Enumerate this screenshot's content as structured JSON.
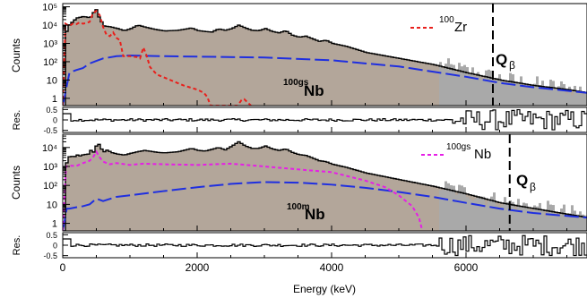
{
  "figure": {
    "x_axis_label": "Energy (keV)",
    "x_ticks": [
      "0",
      "2000",
      "4000",
      "6000"
    ],
    "x_range": [
      0,
      7800
    ]
  },
  "chart_data": [
    {
      "type": "area",
      "panel": "top",
      "ylabel": "Counts",
      "yscale": "log",
      "ylim": [
        0.4,
        150000
      ],
      "y_ticks": [
        "1",
        "10",
        "10²",
        "10³",
        "10⁴",
        "10⁵"
      ],
      "annotations": {
        "q_label": "Q",
        "q_sub": "β",
        "q_line_x": 6400,
        "nucleus_sup": "100gs",
        "nucleus_name": "Nb"
      },
      "legend": {
        "sup": "100",
        "name": "Zr",
        "color": "#e8201c",
        "placement": "top-right"
      },
      "series": [
        {
          "name": "",
          "role": "total-fit",
          "color": "#000000",
          "fill": "#b3a69a",
          "x": [
            0,
            20,
            50,
            100,
            150,
            200,
            300,
            350,
            400,
            450,
            480,
            500,
            520,
            560,
            600,
            700,
            800,
            900,
            1000,
            1100,
            1200,
            1300,
            1400,
            1500,
            1700,
            1900,
            2000,
            2100,
            2200,
            2300,
            2400,
            2500,
            2600,
            2700,
            2800,
            2900,
            3000,
            3100,
            3200,
            3300,
            3400,
            3500,
            3600,
            3700,
            3800,
            3900,
            4000,
            4200,
            4500,
            5000,
            5500,
            6000,
            6500,
            7000,
            7500,
            7800
          ],
          "y": [
            0.4,
            1500,
            8000,
            12000,
            18000,
            25000,
            30000,
            26000,
            28000,
            55000,
            70000,
            45000,
            28000,
            15000,
            9000,
            8000,
            6500,
            5000,
            6500,
            10000,
            8000,
            6500,
            5500,
            4800,
            5200,
            7000,
            5000,
            4500,
            4200,
            6200,
            5200,
            6500,
            10000,
            7000,
            5200,
            5000,
            6500,
            4500,
            3800,
            5000,
            2800,
            2200,
            2500,
            1800,
            1300,
            1500,
            1000,
            700,
            320,
            150,
            70,
            25,
            10,
            5,
            3,
            2
          ]
        },
        {
          "name": "",
          "role": "100gsNb-component",
          "color": "#1f2fe0",
          "x": [
            0,
            100,
            200,
            300,
            400,
            500,
            600,
            800,
            1000,
            1500,
            2000,
            3000,
            4000,
            5000,
            6000,
            6500,
            7000,
            7800
          ],
          "y": [
            0.4,
            25,
            35,
            45,
            80,
            110,
            150,
            200,
            220,
            200,
            190,
            170,
            120,
            55,
            15,
            7,
            4,
            2
          ]
        },
        {
          "name": "100Zr",
          "role": "100Zr-component",
          "color": "#e8201c",
          "dashed": true,
          "x": [
            0,
            40,
            100,
            150,
            200,
            250,
            300,
            350,
            400,
            450,
            500,
            550,
            600,
            650,
            700,
            750,
            800,
            850,
            900,
            1000,
            1100,
            1150,
            1200,
            1250,
            1300,
            1400,
            1600,
            1800,
            2000,
            2100,
            2150,
            2200,
            2260,
            2600,
            2620,
            2660,
            2700,
            2750,
            2800
          ],
          "y": [
            0.4,
            12000,
            9000,
            12000,
            11000,
            14000,
            12000,
            13000,
            15000,
            45000,
            60000,
            35000,
            8000,
            3000,
            2500,
            4000,
            2000,
            1500,
            200,
            200,
            180,
            150,
            600,
            200,
            50,
            20,
            10,
            5,
            3,
            2,
            1.2,
            0.4,
            0.4,
            0.4,
            0.5,
            0.8,
            0.9,
            0.6,
            0.4
          ]
        }
      ]
    },
    {
      "type": "line",
      "panel": "residual-top",
      "ylabel": "Res.",
      "ylim": [
        -0.6,
        0.6
      ],
      "y_ticks": [
        "0.5",
        "0",
        "-0.5"
      ],
      "series": [
        {
          "name": "",
          "x": [
            0,
            7800
          ],
          "y": [
            0,
            0
          ]
        }
      ]
    },
    {
      "type": "area",
      "panel": "bottom",
      "ylabel": "Counts",
      "yscale": "log",
      "ylim": [
        0.4,
        50000
      ],
      "y_ticks": [
        "1",
        "10",
        "10²",
        "10³",
        "10⁴"
      ],
      "annotations": {
        "q_label": "Q",
        "q_sub": "β",
        "q_line_x": 6650,
        "nucleus_sup": "100m",
        "nucleus_name": "Nb"
      },
      "legend": {
        "sup": "100gs",
        "name": "Nb",
        "color": "#e61ee6",
        "placement": "top-right"
      },
      "series": [
        {
          "name": "",
          "role": "total-fit",
          "color": "#000000",
          "fill": "#b3a69a",
          "x": [
            0,
            20,
            60,
            100,
            150,
            200,
            250,
            300,
            350,
            400,
            450,
            500,
            550,
            600,
            650,
            700,
            800,
            900,
            1000,
            1100,
            1200,
            1300,
            1400,
            1500,
            1700,
            1900,
            2000,
            2100,
            2200,
            2300,
            2400,
            2500,
            2600,
            2700,
            2800,
            2900,
            3000,
            3100,
            3200,
            3300,
            3400,
            3500,
            3600,
            3700,
            3800,
            3900,
            4000,
            4200,
            4500,
            5000,
            5500,
            6000,
            6500,
            7000,
            7500,
            7800
          ],
          "y": [
            0.4,
            800,
            3000,
            3500,
            3200,
            4000,
            3500,
            4500,
            4000,
            7000,
            5500,
            20000,
            9000,
            6000,
            7500,
            5500,
            4500,
            4000,
            5000,
            6000,
            7000,
            6200,
            5500,
            5200,
            6000,
            9000,
            7000,
            6500,
            8000,
            10000,
            7500,
            12000,
            20000,
            12000,
            9000,
            9000,
            12000,
            8500,
            7000,
            8500,
            5500,
            4200,
            3800,
            2800,
            2000,
            1800,
            1300,
            900,
            450,
            200,
            90,
            35,
            12,
            6,
            3,
            2
          ]
        },
        {
          "name": "",
          "role": "100mNb-component",
          "color": "#1f2fe0",
          "x": [
            0,
            60,
            100,
            200,
            300,
            400,
            500,
            600,
            800,
            1000,
            1500,
            2000,
            2500,
            3000,
            3500,
            4000,
            4500,
            5000,
            5500,
            6000,
            6500,
            7000,
            7800
          ],
          "y": [
            0.4,
            6,
            6,
            7,
            8,
            10,
            20,
            15,
            25,
            30,
            50,
            80,
            120,
            150,
            140,
            110,
            75,
            45,
            25,
            12,
            6,
            3.5,
            2
          ]
        },
        {
          "name": "100gsNb",
          "role": "100gsNb-component",
          "color": "#e61ee6",
          "dashed": true,
          "x": [
            0,
            50,
            100,
            200,
            300,
            400,
            450,
            500,
            550,
            600,
            700,
            800,
            1000,
            1200,
            1500,
            2000,
            2500,
            3000,
            3500,
            4000,
            4500,
            4800,
            5000,
            5200,
            5300,
            5350
          ],
          "y": [
            0.4,
            1000,
            1100,
            1050,
            1500,
            2000,
            3000,
            6000,
            3000,
            1800,
            1300,
            1500,
            1200,
            1400,
            1300,
            1200,
            1400,
            1000,
            700,
            500,
            180,
            80,
            30,
            8,
            2,
            0.4
          ]
        }
      ]
    },
    {
      "type": "line",
      "panel": "residual-bottom",
      "ylabel": "Res.",
      "ylim": [
        -0.6,
        0.6
      ],
      "y_ticks": [
        "0.5",
        "0",
        "-0.5"
      ],
      "series": [
        {
          "name": "",
          "x": [
            0,
            7800
          ],
          "y": [
            0,
            0
          ]
        }
      ]
    }
  ]
}
